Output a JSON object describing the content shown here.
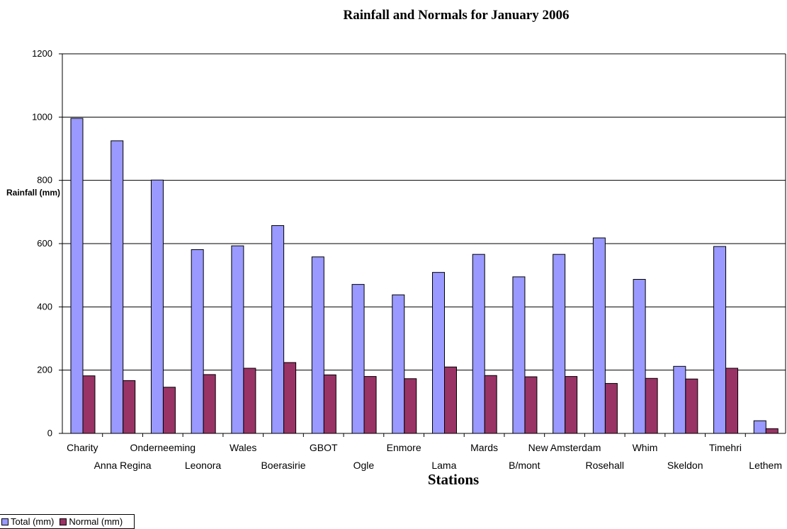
{
  "chart_data": {
    "type": "bar",
    "title": "Rainfall and Normals for January 2006",
    "xlabel": "Stations",
    "ylabel": "Rainfall (mm)",
    "ylim": [
      0,
      1200
    ],
    "yticks": [
      0,
      200,
      400,
      600,
      800,
      1000,
      1200
    ],
    "grid": true,
    "legend_position": "bottom-left",
    "categories": [
      "Charity",
      "Anna Regina",
      "Onderneeming",
      "Leonora",
      "Wales",
      "Boerasirie",
      "GBOT",
      "Ogle",
      "Enmore",
      "Lama",
      "Mards",
      "B/mont",
      "New Amsterdam",
      "Rosehall",
      "Whim",
      "Skeldon",
      "Timehri",
      "Lethem"
    ],
    "series": [
      {
        "name": "Total (mm)",
        "color": "#9999ff",
        "values": [
          996,
          925,
          801,
          581,
          593,
          657,
          558,
          471,
          438,
          509,
          566,
          495,
          566,
          618,
          487,
          212,
          591,
          40
        ]
      },
      {
        "name": "Normal (mm)",
        "color": "#993366",
        "values": [
          182,
          167,
          146,
          186,
          206,
          224,
          185,
          180,
          173,
          210,
          183,
          179,
          180,
          158,
          174,
          172,
          206,
          15
        ]
      }
    ]
  }
}
